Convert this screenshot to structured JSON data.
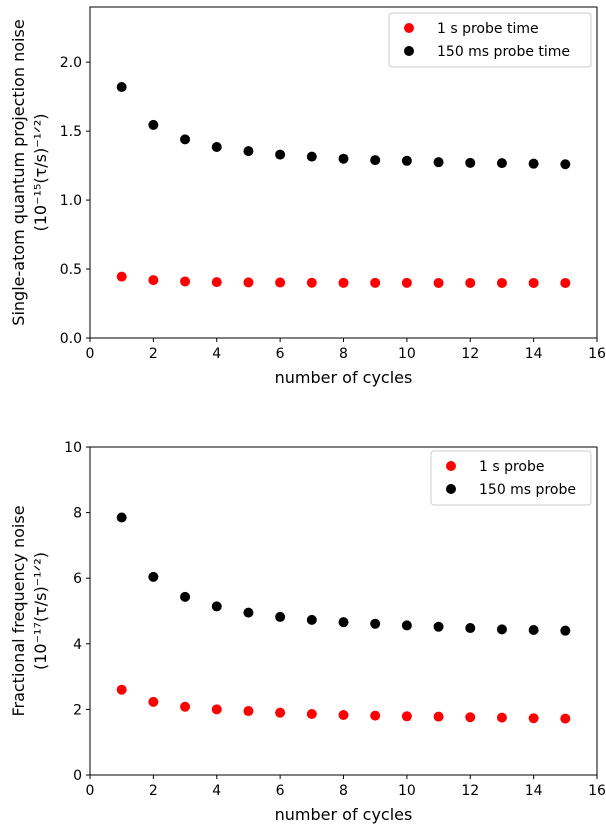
{
  "chart_data": [
    {
      "type": "scatter",
      "xlabel": "number of cycles",
      "ylabel_line1": "Single-atom quantum projection noise",
      "ylabel_line2": "(10⁻¹⁵(τ/s)⁻¹ᐟ²)",
      "xlim": [
        0,
        16
      ],
      "ylim": [
        0,
        2.4
      ],
      "xticks": [
        "0",
        "2",
        "4",
        "6",
        "8",
        "10",
        "12",
        "14",
        "16"
      ],
      "yticks": [
        "0.0",
        "0.5",
        "1.0",
        "1.5",
        "2.0"
      ],
      "ytick_values": [
        0,
        0.5,
        1.0,
        1.5,
        2.0
      ],
      "grid": false,
      "legend_position": "top-right",
      "series": [
        {
          "name": "1 s probe time",
          "color": "#ff0000",
          "x": [
            1,
            2,
            3,
            4,
            5,
            6,
            7,
            8,
            9,
            10,
            11,
            12,
            13,
            14,
            15
          ],
          "y": [
            0.445,
            0.42,
            0.41,
            0.405,
            0.403,
            0.402,
            0.401,
            0.4,
            0.4,
            0.4,
            0.399,
            0.399,
            0.399,
            0.399,
            0.399
          ]
        },
        {
          "name": "150 ms probe time",
          "color": "#000000",
          "x": [
            1,
            2,
            3,
            4,
            5,
            6,
            7,
            8,
            9,
            10,
            11,
            12,
            13,
            14,
            15
          ],
          "y": [
            1.82,
            1.545,
            1.44,
            1.385,
            1.355,
            1.33,
            1.315,
            1.3,
            1.29,
            1.285,
            1.275,
            1.27,
            1.268,
            1.264,
            1.26
          ]
        }
      ]
    },
    {
      "type": "scatter",
      "xlabel": "number of cycles",
      "ylabel_line1": "Fractional frequency noise",
      "ylabel_line2": "(10⁻¹⁷(τ/s)⁻¹ᐟ²)",
      "xlim": [
        0,
        16
      ],
      "ylim": [
        0,
        10
      ],
      "xticks": [
        "0",
        "2",
        "4",
        "6",
        "8",
        "10",
        "12",
        "14",
        "16"
      ],
      "yticks": [
        "0",
        "2",
        "4",
        "6",
        "8",
        "10"
      ],
      "ytick_values": [
        0,
        2,
        4,
        6,
        8,
        10
      ],
      "grid": false,
      "legend_position": "top-right",
      "series": [
        {
          "name": "1 s probe",
          "color": "#ff0000",
          "x": [
            1,
            2,
            3,
            4,
            5,
            6,
            7,
            8,
            9,
            10,
            11,
            12,
            13,
            14,
            15
          ],
          "y": [
            2.6,
            2.23,
            2.08,
            2.0,
            1.95,
            1.9,
            1.86,
            1.83,
            1.81,
            1.79,
            1.78,
            1.76,
            1.75,
            1.73,
            1.72
          ]
        },
        {
          "name": "150 ms probe",
          "color": "#000000",
          "x": [
            1,
            2,
            3,
            4,
            5,
            6,
            7,
            8,
            9,
            10,
            11,
            12,
            13,
            14,
            15
          ],
          "y": [
            7.85,
            6.04,
            5.43,
            5.14,
            4.95,
            4.82,
            4.73,
            4.66,
            4.61,
            4.56,
            4.52,
            4.48,
            4.44,
            4.42,
            4.4
          ]
        }
      ]
    }
  ]
}
